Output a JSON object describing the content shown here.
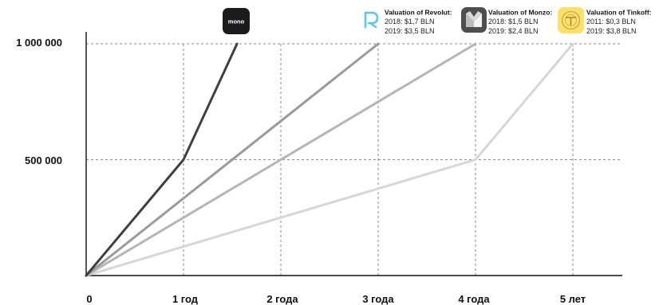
{
  "chart_data": {
    "type": "line",
    "x": [
      0,
      1,
      2,
      3,
      4,
      5
    ],
    "x_tick_labels": [
      "0",
      "1 год",
      "2 года",
      "3 года",
      "4 года",
      "5 лет"
    ],
    "y_ticks": [
      500000,
      1000000
    ],
    "y_tick_labels": [
      "500 000",
      "1 000 000"
    ],
    "ylim": [
      0,
      1000000
    ],
    "xlim": [
      0,
      5
    ],
    "grid": "dashed",
    "series": [
      {
        "name": "mono",
        "color": "#3f3f3f",
        "icon": "monobank-logo",
        "points": [
          [
            0,
            0
          ],
          [
            1,
            500000
          ],
          [
            1.55,
            1000000
          ]
        ]
      },
      {
        "name": "",
        "color": "#9a9a9a",
        "icon": "revolut-logo",
        "points": [
          [
            0,
            0
          ],
          [
            3,
            1000000
          ]
        ]
      },
      {
        "name": "",
        "color": "#b5b5b5",
        "icon": "monzo-logo",
        "points": [
          [
            0,
            0
          ],
          [
            4,
            1000000
          ]
        ]
      },
      {
        "name": "",
        "color": "#d6d6d6",
        "icon": "tinkoff-logo",
        "points": [
          [
            0,
            0
          ],
          [
            4,
            500000
          ],
          [
            5,
            1000000
          ]
        ]
      }
    ],
    "legend": [
      {
        "icon": "revolut-logo",
        "title": "Valuation of Revolut:",
        "lines": [
          "2018: $1,7 BLN",
          "2019: $3,5 BLN"
        ]
      },
      {
        "icon": "monzo-logo",
        "title": "Valuation of Monzo:",
        "lines": [
          "2018: $1,5 BLN",
          "2019: $2,4 BLN"
        ]
      },
      {
        "icon": "tinkoff-logo",
        "title": "Valuation of Tinkoff:",
        "lines": [
          "2011: $0,3 BLN",
          "2019: $3,8 BLN"
        ]
      }
    ],
    "legend_placement": "top-right"
  },
  "colors": {
    "grid": "#8a8a8a",
    "axis": "#111111",
    "mono_logo_bg": "#1b1b1d",
    "revolut_accent": "#59c7f0",
    "monzo_bg": "#4e4e4e",
    "monzo_m": [
      "#f3f3f3",
      "#bdbdbd"
    ],
    "tinkoff_bg": "#ffe066"
  }
}
